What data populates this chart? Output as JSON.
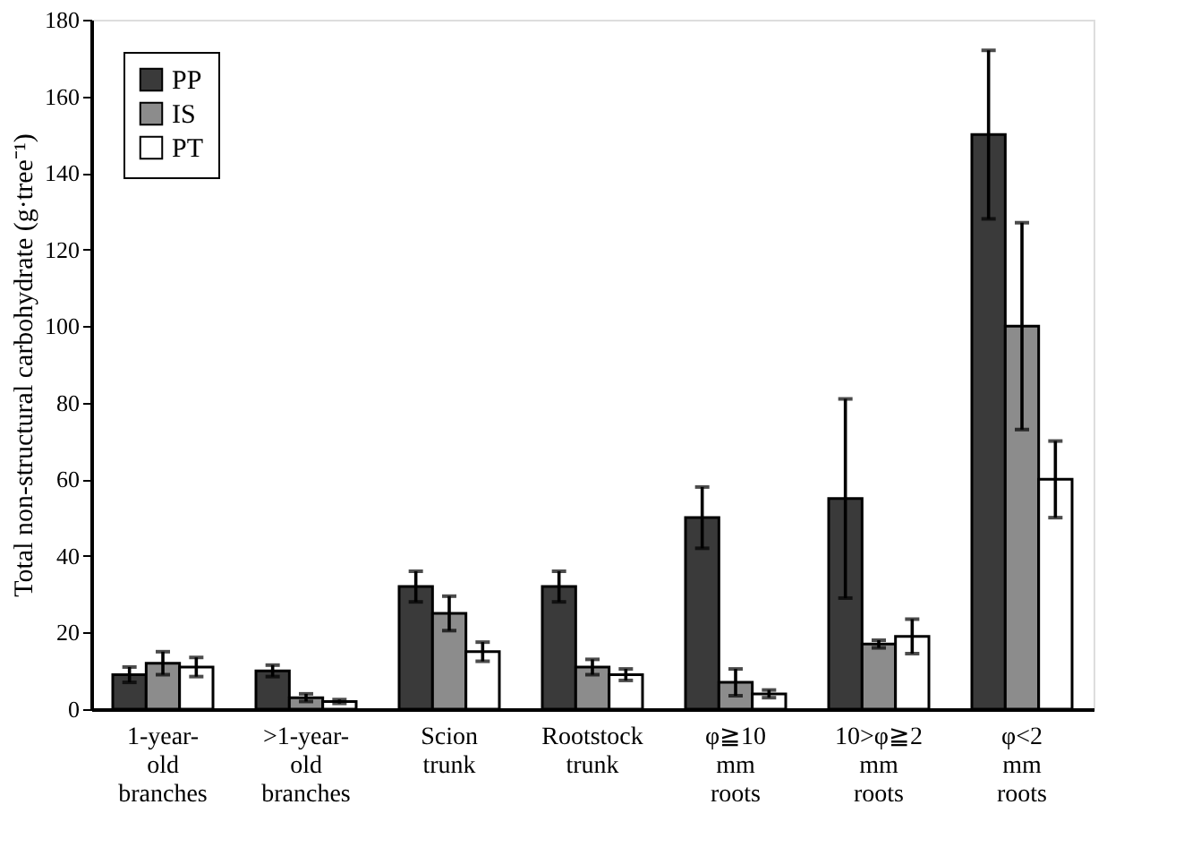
{
  "chart_data": {
    "type": "bar",
    "ylabel": "Total non-structural carbohydrate (g·tree⁻¹)",
    "categories": [
      "1-year-\nold\nbranches",
      ">1-year-\nold\nbranches",
      "Scion\ntrunk",
      "Rootstock\ntrunk",
      "φ≧10\nmm\nroots",
      "10>φ≧2\nmm\nroots",
      "φ<2\nmm\nroots"
    ],
    "series": [
      {
        "name": "PP",
        "color": "#3a3a3a",
        "values": [
          9,
          10,
          32,
          32,
          50,
          55,
          150
        ],
        "errors": [
          2,
          1.5,
          4,
          4,
          8,
          26,
          22
        ]
      },
      {
        "name": "IS",
        "color": "#8c8c8c",
        "values": [
          12,
          3,
          25,
          11,
          7,
          17,
          100
        ],
        "errors": [
          3,
          1,
          4.5,
          2,
          3.5,
          1,
          27
        ]
      },
      {
        "name": "PT",
        "color": "#ffffff",
        "values": [
          11,
          2,
          15,
          9,
          4,
          19,
          60
        ],
        "errors": [
          2.5,
          0.5,
          2.5,
          1.5,
          1,
          4.5,
          10
        ]
      }
    ],
    "ylim": [
      0,
      180
    ],
    "yticks": [
      0,
      20,
      40,
      60,
      80,
      100,
      120,
      140,
      160,
      180
    ],
    "grid": false,
    "legend": "top left"
  }
}
